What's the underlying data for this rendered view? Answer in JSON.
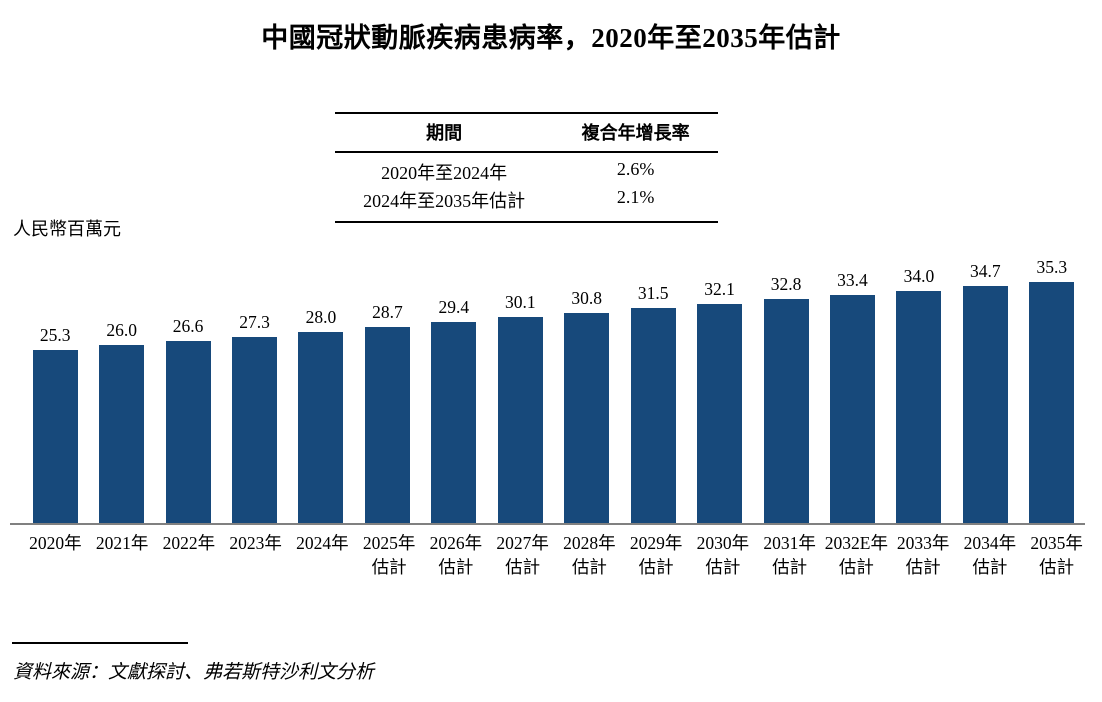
{
  "title": "中國冠狀動脈疾病患病率，2020年至2035年估計",
  "unit_label": "人民幣百萬元",
  "cagr_table": {
    "headers": [
      "期間",
      "複合年增長率"
    ],
    "rows": [
      [
        "2020年至2024年",
        "2.6%"
      ],
      [
        "2024年至2035年估計",
        "2.1%"
      ]
    ]
  },
  "source_note": "資料來源：文獻探討、弗若斯特沙利文分析",
  "colors": {
    "bar": "#17497B",
    "axis": "#808080",
    "text": "#000000"
  },
  "chart_data": {
    "type": "bar",
    "title": "中國冠狀動脈疾病患病率，2020年至2035年估計",
    "ylabel": "人民幣百萬元",
    "xlabel": "",
    "categories": [
      "2020年",
      "2021年",
      "2022年",
      "2023年",
      "2024年",
      "2025年估計",
      "2026年估計",
      "2027年估計",
      "2028年估計",
      "2029年估計",
      "2030年估計",
      "2031年估計",
      "2032E年估計",
      "2033年估計",
      "2034年估計",
      "2035年估計"
    ],
    "values": [
      25.3,
      26.0,
      26.6,
      27.3,
      28.0,
      28.7,
      29.4,
      30.1,
      30.8,
      31.5,
      32.1,
      32.8,
      33.4,
      34.0,
      34.7,
      35.3
    ],
    "data_labels": true,
    "estimate_suffix": "估計",
    "ylim": [
      0,
      37
    ],
    "grid": false,
    "legend": "none"
  }
}
